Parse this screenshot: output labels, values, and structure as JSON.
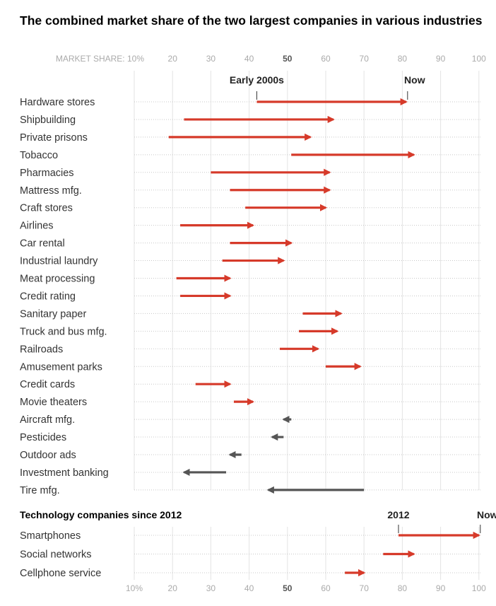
{
  "title": "The combined market share of the two largest companies in various industries",
  "chart_data": [
    {
      "type": "bar",
      "subtitle": "",
      "axis_label": "MARKET SHARE:",
      "xlim": [
        10,
        100
      ],
      "ticks": [
        "10%",
        "20",
        "30",
        "40",
        "50",
        "60",
        "70",
        "80",
        "90",
        "100"
      ],
      "start_label": "Early 2000s",
      "end_label": "Now",
      "colors": {
        "increase": "#d63a2a",
        "decrease": "#555555"
      },
      "series": [
        {
          "category": "Hardware stores",
          "start": 42,
          "end": 81
        },
        {
          "category": "Shipbuilding",
          "start": 23,
          "end": 62
        },
        {
          "category": "Private prisons",
          "start": 19,
          "end": 56
        },
        {
          "category": "Tobacco",
          "start": 51,
          "end": 83
        },
        {
          "category": "Pharmacies",
          "start": 30,
          "end": 61
        },
        {
          "category": "Mattress mfg.",
          "start": 35,
          "end": 61
        },
        {
          "category": "Craft stores",
          "start": 39,
          "end": 60
        },
        {
          "category": "Airlines",
          "start": 22,
          "end": 41
        },
        {
          "category": "Car rental",
          "start": 35,
          "end": 51
        },
        {
          "category": "Industrial laundry",
          "start": 33,
          "end": 49
        },
        {
          "category": "Meat processing",
          "start": 21,
          "end": 35
        },
        {
          "category": "Credit rating",
          "start": 22,
          "end": 35
        },
        {
          "category": "Sanitary paper",
          "start": 54,
          "end": 64
        },
        {
          "category": "Truck and bus mfg.",
          "start": 53,
          "end": 63
        },
        {
          "category": "Railroads",
          "start": 48,
          "end": 58
        },
        {
          "category": "Amusement parks",
          "start": 60,
          "end": 69
        },
        {
          "category": "Credit cards",
          "start": 26,
          "end": 35
        },
        {
          "category": "Movie theaters",
          "start": 36,
          "end": 41
        },
        {
          "category": "Aircraft mfg.",
          "start": 51,
          "end": 49
        },
        {
          "category": "Pesticides",
          "start": 49,
          "end": 46
        },
        {
          "category": "Outdoor ads",
          "start": 38,
          "end": 35
        },
        {
          "category": "Investment banking",
          "start": 34,
          "end": 23
        },
        {
          "category": "Tire mfg.",
          "start": 70,
          "end": 45
        }
      ]
    },
    {
      "type": "bar",
      "subtitle": "Technology companies since 2012",
      "axis_label": "",
      "xlim": [
        10,
        100
      ],
      "ticks": [
        "10%",
        "20",
        "30",
        "40",
        "50",
        "60",
        "70",
        "80",
        "90",
        "100"
      ],
      "start_label": "2012",
      "end_label": "Now",
      "colors": {
        "increase": "#d63a2a",
        "decrease": "#555555"
      },
      "series": [
        {
          "category": "Smartphones",
          "start": 79,
          "end": 100
        },
        {
          "category": "Social networks",
          "start": 75,
          "end": 83
        },
        {
          "category": "Cellphone service",
          "start": 65,
          "end": 70
        }
      ]
    }
  ]
}
